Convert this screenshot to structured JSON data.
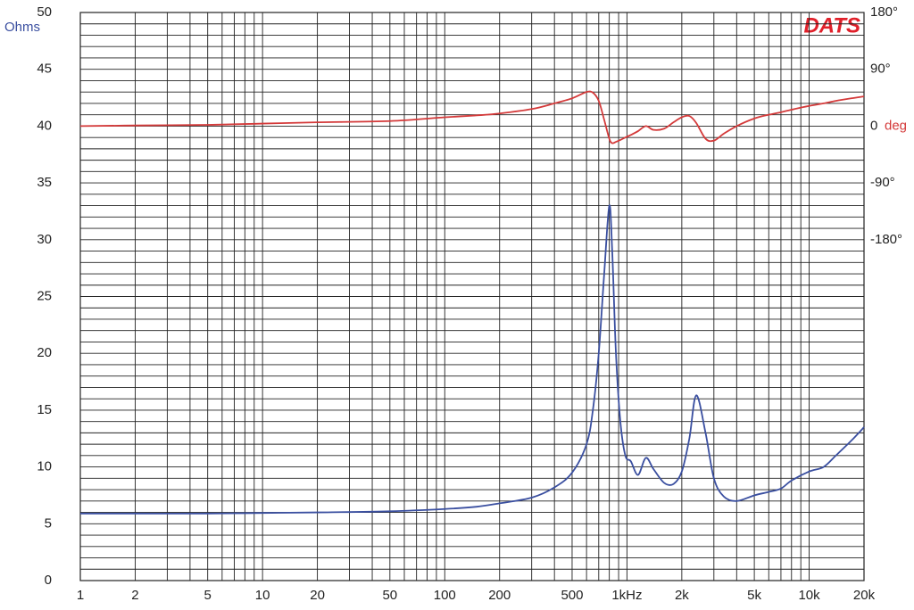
{
  "chart_data": {
    "type": "line",
    "logo": "DATS",
    "ylabel": "Ohms",
    "y2label": "deg",
    "xlog": true,
    "grid": true,
    "x": [
      1,
      2,
      5,
      10,
      20,
      50,
      100,
      150,
      200,
      300,
      400,
      500,
      600,
      650,
      700,
      750,
      800,
      830,
      870,
      920,
      980,
      1050,
      1150,
      1270,
      1400,
      1600,
      1800,
      2000,
      2200,
      2400,
      2700,
      3000,
      3400,
      4000,
      5000,
      6000,
      7000,
      8000,
      10000,
      12000,
      14000,
      17000,
      20000
    ],
    "series": [
      {
        "color": "#3a4fa0",
        "axis": "y",
        "values": [
          5.9,
          5.9,
          5.9,
          5.95,
          6.0,
          6.1,
          6.3,
          6.5,
          6.8,
          7.3,
          8.2,
          9.5,
          12,
          15,
          20,
          27,
          33,
          29,
          20,
          14,
          11,
          10.5,
          9.3,
          10.8,
          9.8,
          8.6,
          8.5,
          9.6,
          12.5,
          16.3,
          13,
          9,
          7.4,
          7.0,
          7.5,
          7.8,
          8.1,
          8.8,
          9.6,
          10,
          11,
          12.3,
          13.5
        ]
      },
      {
        "color": "#d43a3a",
        "axis": "y2",
        "values": [
          0,
          1,
          2,
          4,
          6,
          8,
          14,
          17,
          20,
          27,
          36,
          44,
          54,
          53,
          40,
          10,
          -20,
          -27,
          -25,
          -22,
          -18,
          -14,
          -8,
          0,
          -6,
          -4,
          6,
          14,
          16,
          5,
          -20,
          -23,
          -12,
          0,
          12,
          18,
          22,
          26,
          32,
          36,
          40,
          44,
          47
        ]
      }
    ],
    "xlim": [
      1,
      20000
    ],
    "xticks": [
      1,
      2,
      5,
      10,
      20,
      50,
      100,
      200,
      500,
      {
        "value": 1000,
        "label": "1kHz"
      },
      {
        "value": 2000,
        "label": "2k"
      },
      {
        "value": 5000,
        "label": "5k"
      },
      {
        "value": 10000,
        "label": "10k"
      },
      {
        "value": 20000,
        "label": "20k"
      }
    ],
    "xminor_ticks": [
      3,
      4,
      6,
      7,
      8,
      9,
      30,
      40,
      60,
      70,
      80,
      90,
      300,
      400,
      600,
      700,
      800,
      900,
      3000,
      4000,
      6000,
      7000,
      8000,
      9000
    ],
    "ylim": [
      0,
      50
    ],
    "yticks": [
      0,
      5,
      10,
      15,
      20,
      25,
      30,
      35,
      40,
      45,
      50
    ],
    "yminor_ticks": [
      1,
      2,
      3,
      4,
      6,
      7,
      8,
      9,
      11,
      12,
      13,
      14,
      16,
      17,
      18,
      19,
      21,
      22,
      23,
      24,
      26,
      27,
      28,
      29,
      31,
      32,
      33,
      34,
      36,
      37,
      38,
      39,
      41,
      42,
      43,
      44,
      46,
      47,
      48,
      49
    ],
    "y2lim": [
      -720,
      180
    ],
    "y2ticks": [
      {
        "value": 180,
        "label": "180°"
      },
      {
        "value": 90,
        "label": "90°"
      },
      0,
      {
        "value": -90,
        "label": "-90°"
      },
      {
        "value": -180,
        "label": "-180°"
      }
    ]
  }
}
